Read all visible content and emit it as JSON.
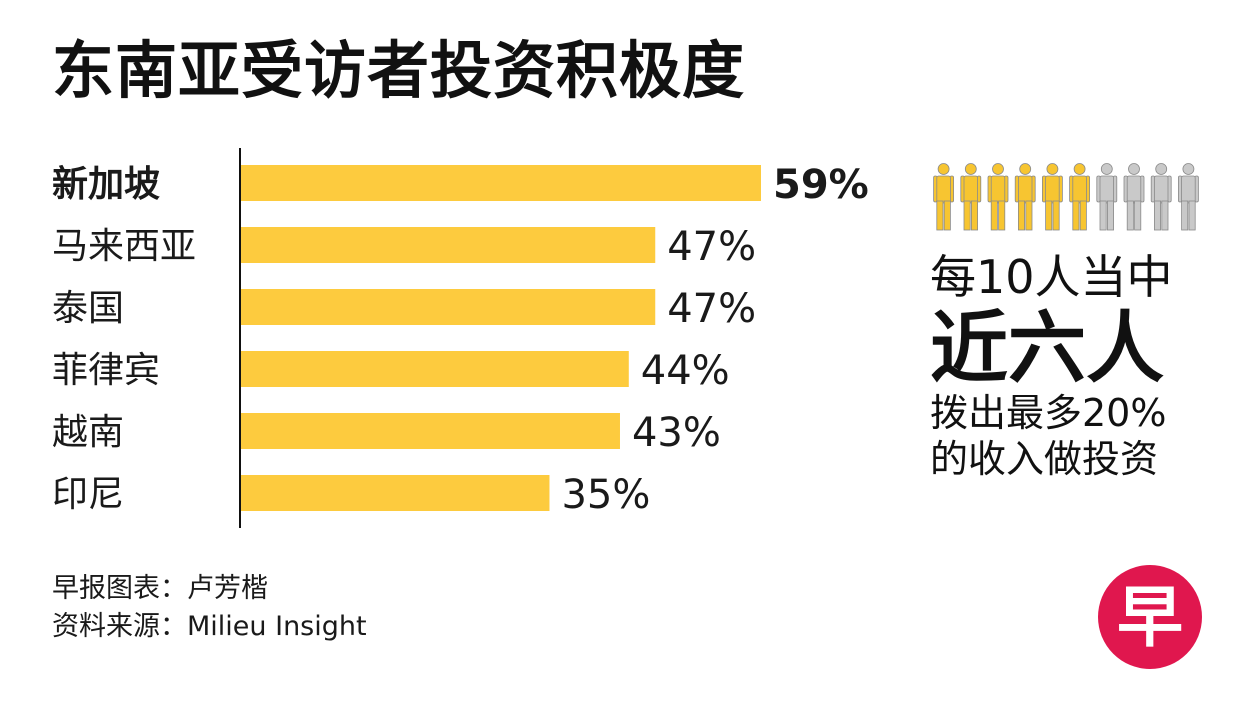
{
  "title": "东南亚受访者投资积极度",
  "chart_data": {
    "type": "bar",
    "orientation": "horizontal",
    "categories": [
      "新加坡",
      "马来西亚",
      "泰国",
      "菲律宾",
      "越南",
      "印尼"
    ],
    "values": [
      59,
      47,
      47,
      44,
      43,
      35
    ],
    "value_labels": [
      "59%",
      "47%",
      "47%",
      "44%",
      "43%",
      "35%"
    ],
    "highlight_index": 0,
    "title": "东南亚受访者投资积极度",
    "xlabel": "",
    "ylabel": "",
    "xlim": [
      0,
      59
    ],
    "grid": false,
    "bar_color": "#FDCB3E",
    "axis_color": "#111111"
  },
  "callout": {
    "people_total": 10,
    "people_highlighted": 6,
    "highlight_color": "#F7C531",
    "inactive_color": "#C9C9C9",
    "line1": "每10人当中",
    "line2": "近六人",
    "line3": "拨出最多20%",
    "line4": "的收入做投资"
  },
  "credits": {
    "graphic": "早报图表：卢芳楷",
    "source": "资料来源：Milieu Insight"
  },
  "logo": {
    "glyph": "早",
    "color": "#E0174E"
  }
}
